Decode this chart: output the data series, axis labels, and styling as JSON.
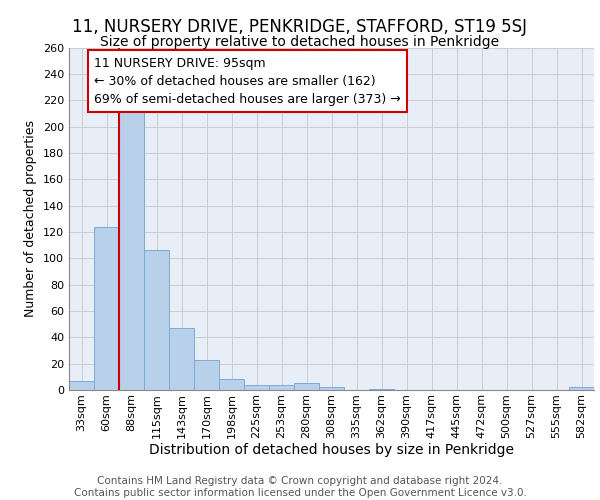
{
  "title": "11, NURSERY DRIVE, PENKRIDGE, STAFFORD, ST19 5SJ",
  "subtitle": "Size of property relative to detached houses in Penkridge",
  "xlabel": "Distribution of detached houses by size in Penkridge",
  "ylabel": "Number of detached properties",
  "categories": [
    "33sqm",
    "60sqm",
    "88sqm",
    "115sqm",
    "143sqm",
    "170sqm",
    "198sqm",
    "225sqm",
    "253sqm",
    "280sqm",
    "308sqm",
    "335sqm",
    "362sqm",
    "390sqm",
    "417sqm",
    "445sqm",
    "472sqm",
    "500sqm",
    "527sqm",
    "555sqm",
    "582sqm"
  ],
  "values": [
    7,
    124,
    217,
    106,
    47,
    23,
    8,
    4,
    4,
    5,
    2,
    0,
    1,
    0,
    0,
    0,
    0,
    0,
    0,
    0,
    2
  ],
  "bar_color": "#b8d0ea",
  "bar_edge_color": "#7aadd4",
  "annotation_text_lines": [
    "11 NURSERY DRIVE: 95sqm",
    "← 30% of detached houses are smaller (162)",
    "69% of semi-detached houses are larger (373) →"
  ],
  "annotation_box_color": "#ffffff",
  "annotation_box_edge_color": "#cc0000",
  "vline_color": "#cc0000",
  "vline_x_index": 2,
  "ylim": [
    0,
    260
  ],
  "yticks": [
    0,
    20,
    40,
    60,
    80,
    100,
    120,
    140,
    160,
    180,
    200,
    220,
    240,
    260
  ],
  "grid_color": "#cccccc",
  "bg_color": "#e8eef8",
  "footer_text": "Contains HM Land Registry data © Crown copyright and database right 2024.\nContains public sector information licensed under the Open Government Licence v3.0.",
  "title_fontsize": 12,
  "subtitle_fontsize": 10,
  "xlabel_fontsize": 10,
  "ylabel_fontsize": 9,
  "tick_fontsize": 8,
  "annotation_fontsize": 9,
  "footer_fontsize": 7.5
}
